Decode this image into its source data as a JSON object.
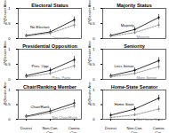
{
  "chart_data": [
    {
      "type": "line",
      "title": "Electoral Status",
      "ylabel": "Pr(Senator Attends)",
      "categories": [
        "District",
        "Non-Con. Circ.",
        "Contro. Circ."
      ],
      "ylim": [
        0,
        1
      ],
      "yticks": [
        0,
        0.5,
        1
      ],
      "tick_labels": "y",
      "series": [
        {
          "name": "No Election",
          "color": "#000000",
          "line_style": "solid",
          "marker": "circle",
          "values": [
            0.1,
            0.22,
            0.62
          ],
          "lower": [
            0.05,
            0.15,
            0.52
          ],
          "upper": [
            0.15,
            0.29,
            0.72
          ]
        },
        {
          "name": "Opposition",
          "color": "#808080",
          "line_style": "dashed",
          "marker": "circle",
          "values": [
            0.08,
            0.18,
            0.45
          ],
          "lower": [
            0.03,
            0.1,
            0.33
          ],
          "upper": [
            0.13,
            0.26,
            0.57
          ]
        }
      ]
    },
    {
      "type": "line",
      "title": "Majority Status",
      "ylabel": "Pr(Senator Attends)",
      "categories": [
        "District",
        "Non-Con. Circ.",
        "Contro. Circ."
      ],
      "ylim": [
        0,
        1
      ],
      "yticks": [
        0,
        0.5,
        1
      ],
      "tick_labels": "y",
      "series": [
        {
          "name": "Majority",
          "color": "#000000",
          "line_style": "solid",
          "marker": "circle",
          "values": [
            0.1,
            0.3,
            0.7
          ],
          "lower": [
            0.05,
            0.22,
            0.6
          ],
          "upper": [
            0.15,
            0.38,
            0.8
          ]
        },
        {
          "name": "Minority",
          "color": "#808080",
          "line_style": "dashed",
          "marker": "circle",
          "values": [
            0.08,
            0.2,
            0.45
          ],
          "lower": [
            0.03,
            0.13,
            0.34
          ],
          "upper": [
            0.13,
            0.27,
            0.56
          ]
        }
      ]
    },
    {
      "type": "line",
      "title": "Presidential Opposition",
      "ylabel": "Pr(Senator Attends)",
      "categories": [
        "District",
        "Non-Con. Circ.",
        "Contro. Circ."
      ],
      "ylim": [
        0,
        1
      ],
      "yticks": [
        0,
        0.5,
        1
      ],
      "tick_labels": "y",
      "series": [
        {
          "name": "Pres. Opp.",
          "color": "#000000",
          "line_style": "solid",
          "marker": "circle",
          "values": [
            0.12,
            0.3,
            0.65
          ],
          "lower": [
            0.06,
            0.22,
            0.54
          ],
          "upper": [
            0.18,
            0.38,
            0.76
          ]
        },
        {
          "name": "Pres. Party",
          "color": "#808080",
          "line_style": "dashed",
          "marker": "circle",
          "values": [
            0.08,
            0.2,
            0.45
          ],
          "lower": [
            0.03,
            0.13,
            0.35
          ],
          "upper": [
            0.13,
            0.27,
            0.55
          ]
        }
      ]
    },
    {
      "type": "line",
      "title": "Seniority",
      "ylabel": "Pr(Senator Attends)",
      "categories": [
        "District",
        "Non-Con. Circ.",
        "Contro. Circ."
      ],
      "ylim": [
        0,
        1
      ],
      "yticks": [
        0,
        0.5,
        1
      ],
      "tick_labels": "y",
      "series": [
        {
          "name": "Less Senior",
          "color": "#000000",
          "line_style": "solid",
          "marker": "circle",
          "values": [
            0.12,
            0.3,
            0.62
          ],
          "lower": [
            0.06,
            0.22,
            0.52
          ],
          "upper": [
            0.18,
            0.38,
            0.72
          ]
        },
        {
          "name": "More Senior",
          "color": "#808080",
          "line_style": "dashed",
          "marker": "circle",
          "values": [
            0.08,
            0.2,
            0.42
          ],
          "lower": [
            0.03,
            0.13,
            0.32
          ],
          "upper": [
            0.13,
            0.27,
            0.52
          ]
        }
      ]
    },
    {
      "type": "line",
      "title": "Chair/Ranking Member",
      "ylabel": "Pr(Senator Attends)",
      "categories": [
        "District",
        "Non-Con. Circ.",
        "Contro. Circ."
      ],
      "ylim": [
        0,
        1
      ],
      "yticks": [
        0,
        0.5,
        1
      ],
      "series": [
        {
          "name": "Chair/Rank",
          "color": "#000000",
          "line_style": "solid",
          "marker": "circle",
          "values": [
            0.1,
            0.28,
            0.55
          ],
          "lower": [
            0.04,
            0.19,
            0.43
          ],
          "upper": [
            0.16,
            0.37,
            0.67
          ]
        },
        {
          "name": "Not Chair/Rank",
          "color": "#808080",
          "line_style": "dashed",
          "marker": "circle",
          "values": [
            0.08,
            0.22,
            0.45
          ],
          "lower": [
            0.03,
            0.15,
            0.36
          ],
          "upper": [
            0.13,
            0.29,
            0.54
          ]
        }
      ]
    },
    {
      "type": "line",
      "title": "Home-State Senator",
      "ylabel": "Pr(Senator Attends)",
      "categories": [
        "District",
        "Non-Con. Circ.",
        "Contro. Circ."
      ],
      "ylim": [
        0,
        1
      ],
      "yticks": [
        0,
        0.5,
        1
      ],
      "series": [
        {
          "name": "Home State",
          "color": "#000000",
          "line_style": "solid",
          "marker": "circle",
          "values": [
            0.14,
            0.35,
            0.72
          ],
          "lower": [
            0.08,
            0.27,
            0.62
          ],
          "upper": [
            0.2,
            0.43,
            0.82
          ]
        },
        {
          "name": "Not Home State",
          "color": "#808080",
          "line_style": "dashed",
          "marker": "circle",
          "values": [
            0.06,
            0.15,
            0.35
          ],
          "lower": [
            0.02,
            0.09,
            0.25
          ],
          "upper": [
            0.1,
            0.21,
            0.45
          ]
        }
      ]
    }
  ]
}
